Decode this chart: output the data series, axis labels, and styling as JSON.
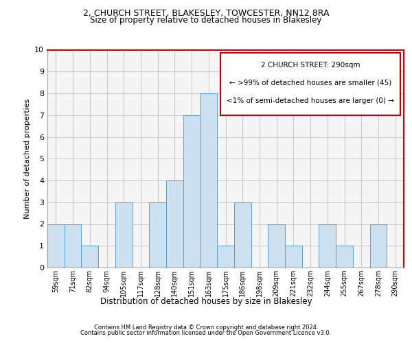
{
  "title1": "2, CHURCH STREET, BLAKESLEY, TOWCESTER, NN12 8RA",
  "title2": "Size of property relative to detached houses in Blakesley",
  "xlabel": "Distribution of detached houses by size in Blakesley",
  "ylabel": "Number of detached properties",
  "categories": [
    "59sqm",
    "71sqm",
    "82sqm",
    "94sqm",
    "105sqm",
    "117sqm",
    "128sqm",
    "140sqm",
    "151sqm",
    "163sqm",
    "175sqm",
    "186sqm",
    "198sqm",
    "209sqm",
    "221sqm",
    "232sqm",
    "244sqm",
    "255sqm",
    "267sqm",
    "278sqm",
    "290sqm"
  ],
  "values": [
    2,
    2,
    1,
    0,
    3,
    0,
    3,
    4,
    7,
    8,
    1,
    3,
    0,
    2,
    1,
    0,
    2,
    1,
    0,
    2,
    0
  ],
  "highlight_index": 20,
  "bar_color": "#cce0f0",
  "bar_edge_color": "#5a9fd4",
  "annotation_border_color": "#cc0000",
  "annotation_text_line1": "2 CHURCH STREET: 290sqm",
  "annotation_text_line2": "← >99% of detached houses are smaller (45)",
  "annotation_text_line3": "<1% of semi-detached houses are larger (0) →",
  "ylim": [
    0,
    10
  ],
  "yticks": [
    0,
    1,
    2,
    3,
    4,
    5,
    6,
    7,
    8,
    9,
    10
  ],
  "footer1": "Contains HM Land Registry data © Crown copyright and database right 2024.",
  "footer2": "Contains public sector information licensed under the Open Government Licence v3.0.",
  "grid_color": "#cccccc",
  "background_color": "#ffffff",
  "plot_bg_color": "#f5f5f5"
}
